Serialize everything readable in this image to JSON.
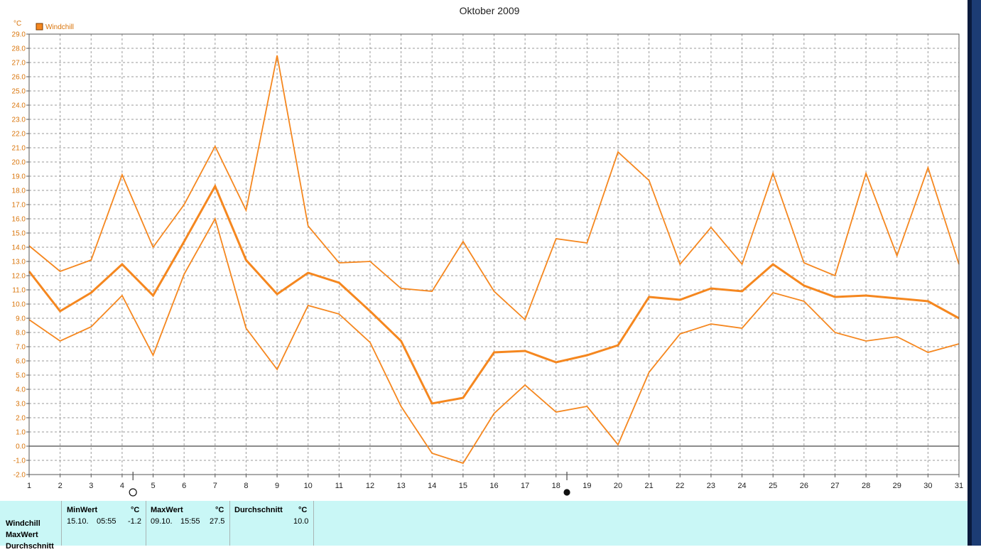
{
  "chart_data": {
    "type": "line",
    "title": "Oktober 2009",
    "ylabel": "°C",
    "legend": [
      "Windchill"
    ],
    "legend_placement": "top-left",
    "grid": true,
    "ylim": [
      -2.0,
      29.0
    ],
    "ytick_step": 1.0,
    "x": [
      1,
      2,
      3,
      4,
      5,
      6,
      7,
      8,
      9,
      10,
      11,
      12,
      13,
      14,
      15,
      16,
      17,
      18,
      19,
      20,
      21,
      22,
      23,
      24,
      25,
      26,
      27,
      28,
      29,
      30,
      31
    ],
    "series": [
      {
        "role": "max",
        "values": [
          14.1,
          12.3,
          13.1,
          19.1,
          14.0,
          17.0,
          21.1,
          16.6,
          27.5,
          15.5,
          12.9,
          13.0,
          11.1,
          10.9,
          14.4,
          10.9,
          8.9,
          14.6,
          14.3,
          20.7,
          18.7,
          12.8,
          15.4,
          12.8,
          19.2,
          12.9,
          12.0,
          19.2,
          13.4,
          19.6,
          12.8
        ]
      },
      {
        "role": "avg",
        "values": [
          12.3,
          9.5,
          10.8,
          12.8,
          10.6,
          14.4,
          18.3,
          13.1,
          10.7,
          12.2,
          11.5,
          9.5,
          7.4,
          3.0,
          3.4,
          6.6,
          6.7,
          5.9,
          6.4,
          7.1,
          10.5,
          10.3,
          11.1,
          10.9,
          12.8,
          11.3,
          10.5,
          10.6,
          10.4,
          10.2,
          9.0
        ]
      },
      {
        "role": "min",
        "values": [
          8.9,
          7.4,
          8.4,
          10.6,
          6.4,
          12.1,
          16.0,
          8.3,
          5.4,
          9.9,
          9.3,
          7.3,
          2.8,
          -0.5,
          -1.2,
          2.3,
          4.3,
          2.4,
          2.8,
          0.1,
          5.2,
          7.9,
          8.6,
          8.3,
          10.8,
          10.2,
          8.0,
          7.4,
          7.7,
          6.6,
          7.2
        ]
      }
    ],
    "moon_markers": [
      {
        "day": 4,
        "icon": "full-moon-icon"
      },
      {
        "day": 18,
        "icon": "new-moon-icon"
      }
    ]
  },
  "colors": {
    "series": "#f5871f",
    "background_panel": "#c9f7f6"
  },
  "stats": {
    "rows": [
      "Windchill",
      "MaxWert",
      "Durchschnitt"
    ],
    "min": {
      "header": "MinWert",
      "unit": "°C",
      "date": "15.10.",
      "time": "05:55",
      "value": "-1.2"
    },
    "max": {
      "header": "MaxWert",
      "unit": "°C",
      "date": "09.10.",
      "time": "15:55",
      "value": "27.5"
    },
    "avg": {
      "header": "Durchschnitt",
      "unit": "°C",
      "value": "10.0"
    }
  }
}
